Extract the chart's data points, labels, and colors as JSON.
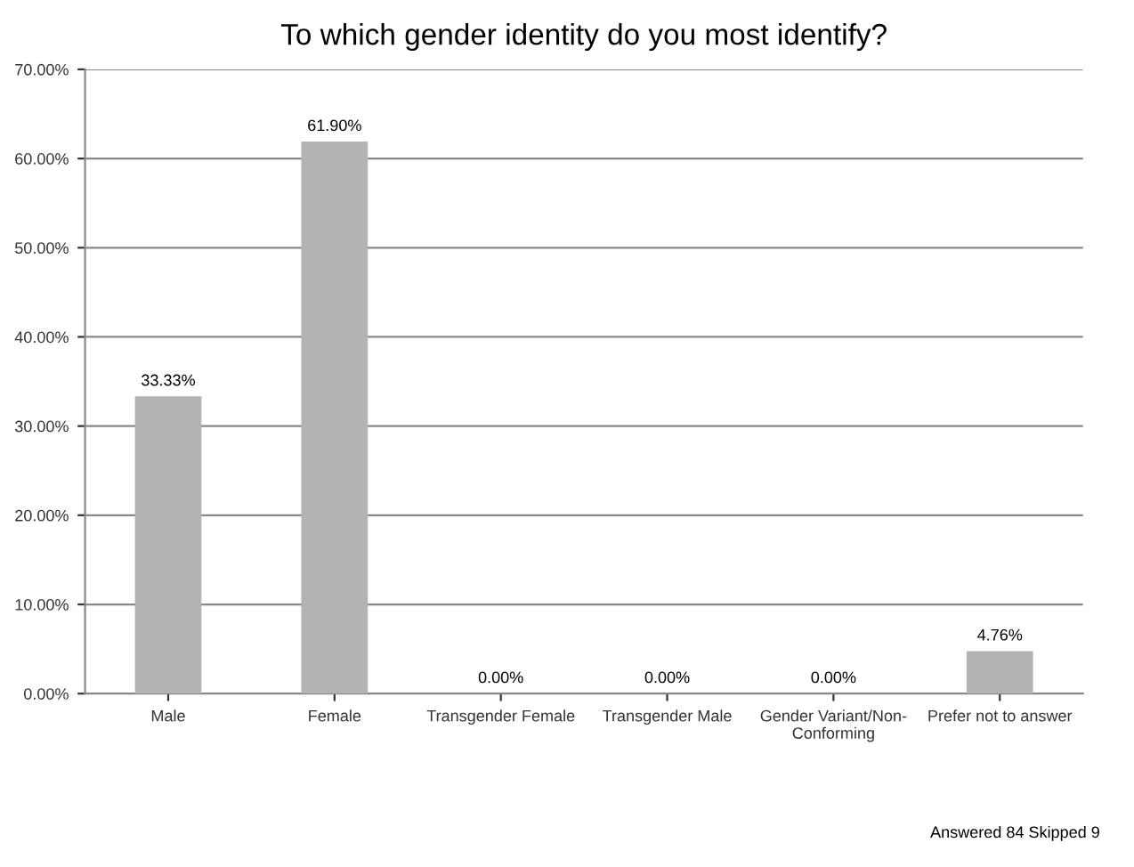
{
  "chart_data": {
    "type": "bar",
    "title": "To which gender identity do you most identify?",
    "categories": [
      "Male",
      "Female",
      "Transgender Female",
      "Transgender Male",
      "Gender Variant/Non-\nConforming",
      "Prefer not to answer"
    ],
    "values": [
      33.33,
      61.9,
      0,
      0,
      0,
      4.76
    ],
    "value_labels": [
      "33.33%",
      "61.90%",
      "0.00%",
      "0.00%",
      "0.00%",
      "4.76%"
    ],
    "color": "#b3b3b3",
    "ylim": [
      0,
      70
    ],
    "yticks": [
      {
        "value": 0,
        "label": "0.00%"
      },
      {
        "value": 10,
        "label": "10.00%"
      },
      {
        "value": 20,
        "label": "20.00%"
      },
      {
        "value": 30,
        "label": "30.00%"
      },
      {
        "value": 40,
        "label": "40.00%"
      },
      {
        "value": 50,
        "label": "50.00%"
      },
      {
        "value": 60,
        "label": "60.00%"
      },
      {
        "value": 70,
        "label": "70.00%"
      }
    ],
    "grid": "y",
    "annotations": [
      "Answered 84 Skipped 9"
    ]
  }
}
